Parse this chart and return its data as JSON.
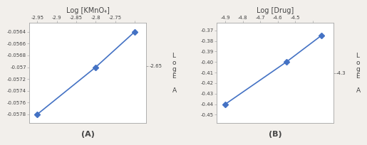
{
  "chart_A": {
    "title": "Log [KMnO₄]",
    "x_data": [
      -2.95,
      -2.8,
      -2.7
    ],
    "y_data": [
      -0.0578,
      -0.057,
      -0.0564
    ],
    "x_ticks": [
      -2.95,
      -2.9,
      -2.85,
      -2.8,
      -2.75,
      -2.7
    ],
    "x_ticklabels": [
      "-2.95",
      "-2.9",
      "-2.85",
      "-2.8",
      "-2.75",
      ""
    ],
    "y_right_ticks": [
      -0.0564,
      -0.0566,
      -0.0568,
      -0.057,
      -0.0572,
      -0.0574,
      -0.0576,
      -0.0578
    ],
    "y_right_ticklabels": [
      "-0.0564",
      "-0.0566",
      "-0.0568",
      "-0.057",
      "-0.0572",
      "-0.0574",
      "-0.0576",
      "-0.0578"
    ],
    "y2_ticks": [
      -2.65
    ],
    "y2_ticklabels": [
      "-2.65"
    ],
    "xlim": [
      -2.97,
      -2.67
    ],
    "ylim": [
      -0.05795,
      -0.05625
    ],
    "y2lim": [
      -2.67,
      -2.635
    ],
    "ylabel_text": "L\no\ng\nE\n\nA",
    "label": "(A)",
    "line_color": "#4472C4",
    "marker": "D",
    "markersize": 4
  },
  "chart_B": {
    "title": "Log [Drug]",
    "x_data": [
      -4.9,
      -4.55,
      -4.35
    ],
    "y_data": [
      -0.44,
      -0.4,
      -0.375
    ],
    "x_ticks": [
      -4.9,
      -4.8,
      -4.7,
      -4.6,
      -4.5,
      -4.4
    ],
    "x_ticklabels": [
      "-4.9",
      "-4.8",
      "-4.7",
      "-4.6",
      "-4.5",
      ""
    ],
    "y_right_ticks": [
      -0.37,
      -0.38,
      -0.39,
      -0.4,
      -0.41,
      -0.42,
      -0.43,
      -0.44,
      -0.45
    ],
    "y_right_ticklabels": [
      "-0.37",
      "-0.38",
      "-0.39",
      "-0.40",
      "-0.41",
      "-0.42",
      "-0.43",
      "-0.44",
      "-0.45"
    ],
    "y2_ticks": [
      -4.3
    ],
    "y2_ticklabels": [
      "-4.3"
    ],
    "xlim": [
      -4.95,
      -4.28
    ],
    "ylim": [
      -0.458,
      -0.363
    ],
    "y2lim": [
      -4.35,
      -4.25
    ],
    "ylabel_text": "L\no\ng\nE\n\nA",
    "label": "(B)",
    "line_color": "#4472C4",
    "marker": "D",
    "markersize": 4
  },
  "bg_color": "#f2efeb",
  "plot_bg": "#ffffff",
  "font_color": "#444444",
  "tick_fontsize": 5,
  "title_fontsize": 7
}
